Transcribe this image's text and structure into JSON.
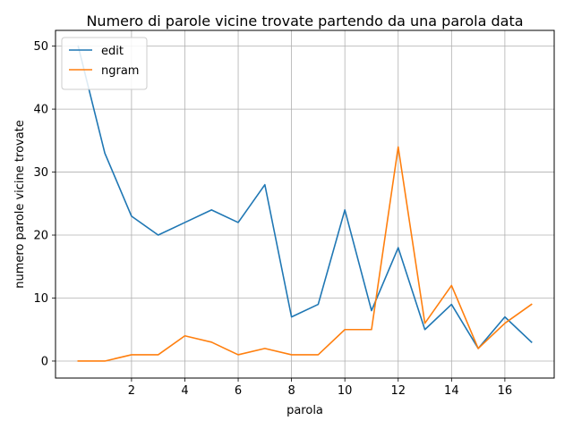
{
  "chart_data": {
    "type": "line",
    "title": "Numero di parole vicine trovate partendo da una parola data",
    "xlabel": "parola",
    "ylabel": "numero parole vicine trovate",
    "xlim": [
      -0.85,
      17.85
    ],
    "ylim": [
      -2.7,
      52.5
    ],
    "x_ticks": [
      2,
      4,
      6,
      8,
      10,
      12,
      14,
      16
    ],
    "y_ticks": [
      0,
      10,
      20,
      30,
      40,
      50
    ],
    "grid": true,
    "legend_position": "top-left",
    "x": [
      0,
      1,
      2,
      3,
      4,
      5,
      6,
      7,
      8,
      9,
      10,
      11,
      12,
      13,
      14,
      15,
      16,
      17
    ],
    "series": [
      {
        "name": "edit",
        "color": "#1f77b4",
        "values": [
          50,
          33,
          23,
          20,
          22,
          24,
          22,
          28,
          7,
          9,
          24,
          8,
          18,
          5,
          9,
          2,
          7,
          3
        ]
      },
      {
        "name": "ngram",
        "color": "#ff7f0e",
        "values": [
          0,
          0,
          1,
          1,
          4,
          3,
          1,
          2,
          1,
          1,
          5,
          5,
          34,
          6,
          12,
          2,
          6,
          9
        ]
      }
    ]
  }
}
